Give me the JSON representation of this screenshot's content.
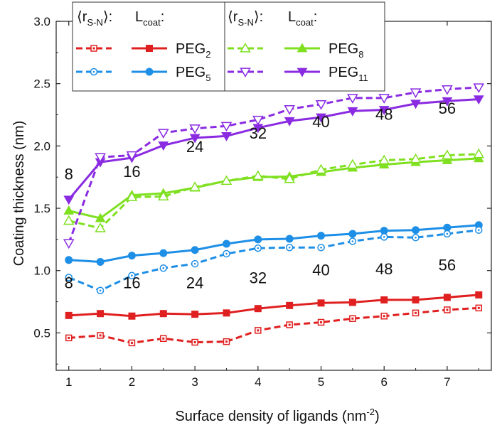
{
  "chart_data": {
    "type": "line",
    "xlabel": "Surface density of ligands (nm",
    "xlabel_sup": "-2",
    "xlabel_close": ")",
    "ylabel": "Coating thickness (nm)",
    "xlim": [
      0.8,
      7.7
    ],
    "ylim": [
      0.2,
      3.0
    ],
    "xticks": [
      1,
      2,
      3,
      4,
      5,
      6,
      7
    ],
    "yticks": [
      0.5,
      1.0,
      1.5,
      2.0,
      2.5,
      3.0
    ],
    "xtick_labels": [
      "1",
      "2",
      "3",
      "4",
      "5",
      "6",
      "7"
    ],
    "ytick_labels": [
      "0.5",
      "1.0",
      "1.5",
      "2.0",
      "2.5",
      "3.0"
    ],
    "x": [
      1.0,
      1.5,
      2.0,
      2.5,
      3.0,
      3.5,
      4.0,
      4.5,
      5.0,
      5.5,
      6.0,
      6.5,
      7.0,
      7.5
    ],
    "series": [
      {
        "name": "PEG2",
        "kind": "Lcoat",
        "color": "#e02020",
        "marker": "square",
        "dashed": false,
        "values": [
          0.64,
          0.655,
          0.635,
          0.655,
          0.65,
          0.66,
          0.695,
          0.72,
          0.74,
          0.745,
          0.765,
          0.765,
          0.785,
          0.805
        ]
      },
      {
        "name": "PEG2",
        "kind": "rS-N",
        "color": "#e02020",
        "marker": "square",
        "dashed": true,
        "values": [
          0.46,
          0.48,
          0.42,
          0.455,
          0.425,
          0.43,
          0.52,
          0.565,
          0.585,
          0.615,
          0.635,
          0.66,
          0.685,
          0.7
        ]
      },
      {
        "name": "PEG5",
        "kind": "Lcoat",
        "color": "#1e8fe6",
        "marker": "circle",
        "dashed": false,
        "values": [
          1.085,
          1.07,
          1.12,
          1.14,
          1.165,
          1.215,
          1.25,
          1.255,
          1.28,
          1.295,
          1.32,
          1.325,
          1.345,
          1.365
        ]
      },
      {
        "name": "PEG5",
        "kind": "rS-N",
        "color": "#1e8fe6",
        "marker": "circle",
        "dashed": true,
        "values": [
          0.945,
          0.84,
          0.96,
          1.02,
          1.055,
          1.135,
          1.18,
          1.185,
          1.185,
          1.235,
          1.27,
          1.265,
          1.295,
          1.325
        ]
      },
      {
        "name": "PEG8",
        "kind": "Lcoat",
        "color": "#7fe020",
        "marker": "triangle-up",
        "dashed": false,
        "values": [
          1.48,
          1.42,
          1.605,
          1.62,
          1.665,
          1.72,
          1.75,
          1.755,
          1.79,
          1.825,
          1.85,
          1.87,
          1.885,
          1.9
        ]
      },
      {
        "name": "PEG8",
        "kind": "rS-N",
        "color": "#7fe020",
        "marker": "triangle-up",
        "dashed": true,
        "values": [
          1.4,
          1.34,
          1.59,
          1.595,
          1.67,
          1.72,
          1.76,
          1.735,
          1.81,
          1.85,
          1.885,
          1.895,
          1.925,
          1.935
        ]
      },
      {
        "name": "PEG11",
        "kind": "Lcoat",
        "color": "#8a2be2",
        "marker": "triangle-down",
        "dashed": false,
        "values": [
          1.57,
          1.87,
          1.905,
          2.005,
          2.065,
          2.08,
          2.145,
          2.2,
          2.23,
          2.28,
          2.29,
          2.34,
          2.36,
          2.375
        ]
      },
      {
        "name": "PEG11",
        "kind": "rS-N",
        "color": "#8a2be2",
        "marker": "triangle-down",
        "dashed": true,
        "values": [
          1.22,
          1.91,
          1.925,
          2.105,
          2.14,
          2.16,
          2.21,
          2.295,
          2.335,
          2.385,
          2.385,
          2.43,
          2.455,
          2.47
        ]
      }
    ],
    "annotations_upper": [
      {
        "text": "8",
        "x": 1.0,
        "y": 1.73
      },
      {
        "text": "16",
        "x": 2.0,
        "y": 1.75
      },
      {
        "text": "24",
        "x": 3.0,
        "y": 1.95
      },
      {
        "text": "32",
        "x": 4.0,
        "y": 2.06
      },
      {
        "text": "40",
        "x": 5.0,
        "y": 2.15
      },
      {
        "text": "48",
        "x": 6.0,
        "y": 2.21
      },
      {
        "text": "56",
        "x": 7.0,
        "y": 2.26
      }
    ],
    "annotations_lower": [
      {
        "text": "8",
        "x": 1.0,
        "y": 0.86
      },
      {
        "text": "16",
        "x": 2.0,
        "y": 0.86
      },
      {
        "text": "24",
        "x": 3.0,
        "y": 0.86
      },
      {
        "text": "32",
        "x": 4.0,
        "y": 0.9
      },
      {
        "text": "40",
        "x": 5.0,
        "y": 0.96
      },
      {
        "text": "48",
        "x": 6.0,
        "y": 0.97
      },
      {
        "text": "56",
        "x": 7.0,
        "y": 1.0
      }
    ],
    "legend": {
      "header_rsn_open": "⟨r",
      "header_rsn_sub": "S-N",
      "header_rsn_close": "⟩:",
      "header_lcoat": "L",
      "header_lcoat_sub": "coat",
      "header_lcoat_colon": ":",
      "entries": [
        {
          "label": "PEG",
          "sub": "2",
          "color": "#e02020",
          "marker": "square"
        },
        {
          "label": "PEG",
          "sub": "5",
          "color": "#1e8fe6",
          "marker": "circle"
        },
        {
          "label": "PEG",
          "sub": "8",
          "color": "#7fe020",
          "marker": "triangle-up"
        },
        {
          "label": "PEG",
          "sub": "11",
          "color": "#8a2be2",
          "marker": "triangle-down"
        }
      ]
    }
  }
}
